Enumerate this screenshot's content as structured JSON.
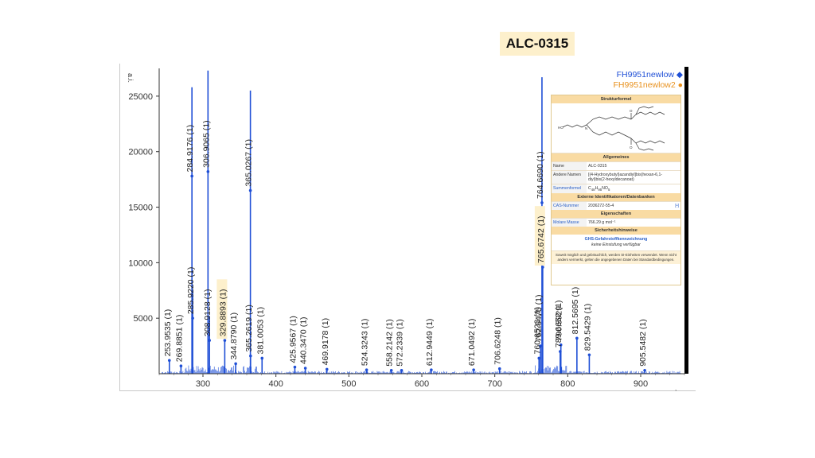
{
  "header": {
    "label": "ALC-0315"
  },
  "legend": {
    "series1": "FH9951newlow",
    "series2": "FH9951newlow2"
  },
  "chart_data": {
    "type": "bar",
    "ylabel": "a.i.",
    "xlim": [
      240,
      960
    ],
    "ylim": [
      0,
      27500
    ],
    "xticks": [
      300,
      400,
      500,
      600,
      700,
      800,
      900
    ],
    "yticks": [
      5000,
      10000,
      15000,
      20000,
      25000
    ],
    "series": [
      {
        "color": "#1f4fd6",
        "points": [
          [
            253.9535,
            1200
          ],
          [
            269.8851,
            700
          ],
          [
            284.9176,
            25800
          ],
          [
            285.922,
            7500
          ],
          [
            306.9065,
            27300
          ],
          [
            308.9128,
            5200
          ],
          [
            329.8893,
            3000
          ],
          [
            344.879,
            900
          ],
          [
            365.0267,
            25500
          ],
          [
            365.2619,
            1600
          ],
          [
            381.0053,
            1400
          ],
          [
            425.9567,
            600
          ],
          [
            440.347,
            500
          ],
          [
            469.9178,
            400
          ],
          [
            524.3243,
            350
          ],
          [
            558.2142,
            300
          ],
          [
            572.2339,
            300
          ],
          [
            612.9449,
            350
          ],
          [
            671.0492,
            350
          ],
          [
            706.6248,
            450
          ],
          [
            760.6523,
            1400
          ],
          [
            762.6475,
            2500
          ],
          [
            764.669,
            26700
          ],
          [
            765.6742,
            9600
          ],
          [
            789.6652,
            2000
          ],
          [
            790.5929,
            2600
          ],
          [
            812.5695,
            3200
          ],
          [
            829.5429,
            1700
          ],
          [
            905.5482,
            300
          ]
        ]
      }
    ],
    "labels": [
      {
        "x": 253.9535,
        "text": "253.9535 (1)",
        "h": 1200
      },
      {
        "x": 269.8851,
        "text": "269.8851 (1)",
        "h": 700
      },
      {
        "x": 284.9176,
        "text": "284.9176 (1)",
        "h": 17800
      },
      {
        "x": 285.922,
        "text": "285.9220 (1)",
        "h": 5000
      },
      {
        "x": 306.9065,
        "text": "306.9065 (1)",
        "h": 18200
      },
      {
        "x": 308.9128,
        "text": "308.9128 (1)",
        "h": 3000
      },
      {
        "x": 329.8893,
        "text": "329.8893 (1)",
        "h": 3000
      },
      {
        "x": 344.879,
        "text": "344.8790 (1)",
        "h": 900
      },
      {
        "x": 365.0267,
        "text": "365.0267 (1)",
        "h": 16500
      },
      {
        "x": 365.2619,
        "text": "365.2619 (1)",
        "h": 1600
      },
      {
        "x": 381.0053,
        "text": "381.0053 (1)",
        "h": 1400
      },
      {
        "x": 425.9567,
        "text": "425.9567 (1)",
        "h": 600
      },
      {
        "x": 440.347,
        "text": "440.3470 (1)",
        "h": 500
      },
      {
        "x": 469.9178,
        "text": "469.9178 (1)",
        "h": 400
      },
      {
        "x": 524.3243,
        "text": "524.3243 (1)",
        "h": 350
      },
      {
        "x": 558.2142,
        "text": "558.2142 (1)",
        "h": 300
      },
      {
        "x": 572.2339,
        "text": "572.2339 (1)",
        "h": 300
      },
      {
        "x": 612.9449,
        "text": "612.9449 (1)",
        "h": 350
      },
      {
        "x": 671.0492,
        "text": "671.0492 (1)",
        "h": 350
      },
      {
        "x": 706.6248,
        "text": "706.6248 (1)",
        "h": 450
      },
      {
        "x": 760.6523,
        "text": "760.6523 (1)",
        "h": 1400
      },
      {
        "x": 762.6475,
        "text": "762.6475 (1)",
        "h": 2500
      },
      {
        "x": 764.669,
        "text": "764.6690 (1)",
        "h": 15400
      },
      {
        "x": 765.6742,
        "text": "765.6742 (1)",
        "h": 9600
      },
      {
        "x": 789.6652,
        "text": "789.6652 (1)",
        "h": 2000
      },
      {
        "x": 790.5929,
        "text": "790.5929",
        "h": 2600
      },
      {
        "x": 812.5695,
        "text": "812.5695 (1)",
        "h": 3200
      },
      {
        "x": 829.5429,
        "text": "829.5429 (1)",
        "h": 1700
      },
      {
        "x": 905.5482,
        "text": "905.5482 (1)",
        "h": 300
      }
    ],
    "highlighted_labels": [
      "329.8893 (1)",
      "765.6742 (1)"
    ]
  },
  "infobox": {
    "section_structure": "Strukturformel",
    "section_general": "Allgemeines",
    "name_key": "Name",
    "name_value": "ALC-0315",
    "other_names_key": "Andere Namen",
    "other_names_value": "[(4-Hydroxybutyl)azandiyl]bis(hexan-6,1-diyl)bis(2-hexyldecanoat)",
    "formula_key": "Summenformel",
    "formula_value": "C48H95NO5",
    "section_ids": "Externe Identifikatoren/Datenbanken",
    "cas_key": "CAS-Nummer",
    "cas_value": "2036272-55-4",
    "cas_extra": "[•]",
    "section_props": "Eigenschaften",
    "mass_key": "Molare Masse",
    "mass_value": "766.29 g mol⁻¹",
    "section_safety": "Sicherheitshinweise",
    "ghs_title": "GHS-Gefahrstoffkennzeichnung",
    "ghs_value": "keine Einstufung verfügbar",
    "footnote": "Soweit möglich und gebräuchlich, werden SI-Einheiten verwendet. Wenn nicht anders vermerkt, gelten die angegebenen Daten bei Standardbedingungen."
  }
}
